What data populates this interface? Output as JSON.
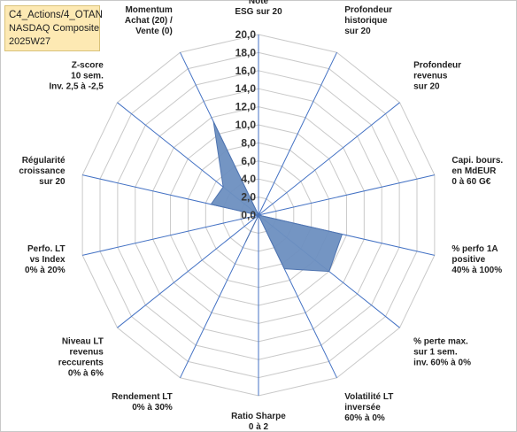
{
  "title_box": {
    "line1": "C4_Actions/4_OTAN",
    "line2": "NASDAQ Composite",
    "line3": "2025W27"
  },
  "colors": {
    "fill": "#6d8fc0",
    "stroke": "#4f74b0",
    "grid": "#c9c9c9",
    "spoke": "#4472c4",
    "title_bg": "#fde9b3"
  },
  "chart_data": {
    "type": "radar",
    "r_min": 0,
    "r_max": 20,
    "r_ticks": [
      "0,0",
      "2,0",
      "4,0",
      "6,0",
      "8,0",
      "10,0",
      "12,0",
      "14,0",
      "16,0",
      "18,0",
      "20,0"
    ],
    "grid": true,
    "axes": [
      {
        "label": [
          "Note",
          "ESG sur 20"
        ],
        "value": 0
      },
      {
        "label": [
          "Profondeur",
          "historique",
          "sur 20"
        ],
        "value": 0
      },
      {
        "label": [
          "Profondeur",
          "revenus",
          "sur 20"
        ],
        "value": 0
      },
      {
        "label": [
          "Capi. bours.",
          "en MdEUR",
          "0 à 60 G€"
        ],
        "value": 0
      },
      {
        "label": [
          "% perfo 1A",
          "positive",
          "40% à 100%"
        ],
        "value": 9.5
      },
      {
        "label": [
          "% perte max.",
          "sur 1 sem.",
          "inv. 60% à 0%"
        ],
        "value": 10.0
      },
      {
        "label": [
          "Volatilité LT",
          "inversée",
          "60% à 0%"
        ],
        "value": 6.6
      },
      {
        "label": [
          "Ratio Sharpe",
          "0 à 2"
        ],
        "value": 0
      },
      {
        "label": [
          "Rendement LT",
          "0% à 30%"
        ],
        "value": 3.3
      },
      {
        "label": [
          "Niveau LT",
          "revenus",
          "reccurents",
          "0% à 6%"
        ],
        "value": 0
      },
      {
        "label": [
          "Perfo. LT",
          "vs Index",
          "0% à 20%"
        ],
        "value": 0
      },
      {
        "label": [
          "Régularité",
          "croissance",
          "sur 20"
        ],
        "value": 5.4
      },
      {
        "label": [
          "Z-score",
          "10 sem.",
          "Inv. 2,5 à -2,5"
        ],
        "value": 5.0
      },
      {
        "label": [
          "Momentum",
          "Achat (20) /",
          "Vente (0)"
        ],
        "value": 11.5
      }
    ]
  }
}
